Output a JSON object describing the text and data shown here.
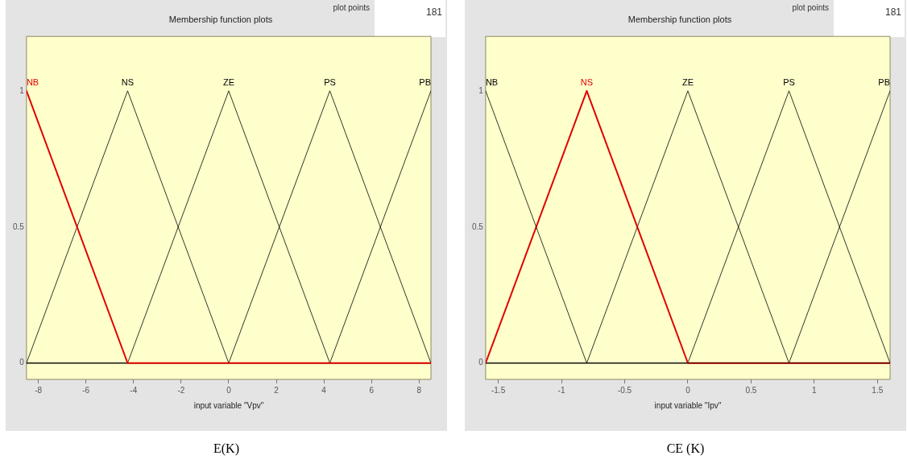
{
  "chart_data": [
    {
      "type": "line",
      "title": "Membership function plots",
      "xlabel": "input variable \"Vpv\"",
      "xlim": [
        -8.5,
        8.5
      ],
      "xticks": [
        -8,
        -6,
        -4,
        -2,
        0,
        2,
        4,
        6,
        8
      ],
      "ylim": [
        -0.06,
        1.2
      ],
      "yticks": [
        0,
        0.5,
        1
      ],
      "grid": false,
      "legend": false,
      "marker": "none",
      "line_style": "solid",
      "annotations": [
        "plot points",
        "181",
        "E(K)"
      ],
      "series": [
        {
          "name": "NB",
          "color": "#e00000",
          "x": [
            -8.5,
            -4.25,
            8.5
          ],
          "values": [
            1,
            0,
            0
          ]
        },
        {
          "name": "NS",
          "color": "#000000",
          "x": [
            -8.5,
            -4.25,
            0,
            8.5
          ],
          "values": [
            0,
            1,
            0,
            0
          ]
        },
        {
          "name": "ZE",
          "color": "#000000",
          "x": [
            -8.5,
            -4.25,
            0,
            4.25,
            8.5
          ],
          "values": [
            0,
            0,
            1,
            0,
            0
          ]
        },
        {
          "name": "PS",
          "color": "#000000",
          "x": [
            -8.5,
            0,
            4.25,
            8.5
          ],
          "values": [
            0,
            0,
            1,
            0
          ]
        },
        {
          "name": "PB",
          "color": "#000000",
          "x": [
            -8.5,
            4.25,
            8.5
          ],
          "values": [
            0,
            0,
            1
          ]
        }
      ]
    },
    {
      "type": "line",
      "title": "Membership function plots",
      "xlabel": "input variable \"Ipv\"",
      "xlim": [
        -1.6,
        1.6
      ],
      "xticks": [
        -1.5,
        -1,
        -0.5,
        0,
        0.5,
        1,
        1.5
      ],
      "ylim": [
        -0.06,
        1.2
      ],
      "yticks": [
        0,
        0.5,
        1
      ],
      "grid": false,
      "legend": false,
      "marker": "none",
      "line_style": "solid",
      "annotations": [
        "plot points",
        "181",
        "CE (K)"
      ],
      "series": [
        {
          "name": "NB",
          "color": "#000000",
          "x": [
            -1.6,
            -0.8,
            1.6
          ],
          "values": [
            1,
            0,
            0
          ]
        },
        {
          "name": "NS",
          "color": "#e00000",
          "x": [
            -1.6,
            -0.8,
            0,
            1.6
          ],
          "values": [
            0,
            1,
            0,
            0
          ]
        },
        {
          "name": "ZE",
          "color": "#000000",
          "x": [
            -1.6,
            -0.8,
            0,
            0.8,
            1.6
          ],
          "values": [
            0,
            0,
            1,
            0,
            0
          ]
        },
        {
          "name": "PS",
          "color": "#000000",
          "x": [
            -1.6,
            0,
            0.8,
            1.6
          ],
          "values": [
            0,
            0,
            1,
            0
          ]
        },
        {
          "name": "PB",
          "color": "#000000",
          "x": [
            -1.6,
            0.8,
            1.6
          ],
          "values": [
            0,
            0,
            1
          ]
        }
      ]
    }
  ]
}
